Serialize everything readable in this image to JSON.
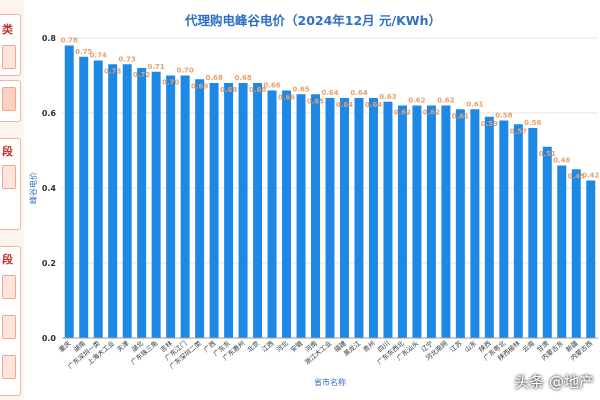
{
  "side_panel": {
    "labels": [
      "类",
      "段",
      "段"
    ]
  },
  "watermark": "头条 @地产",
  "chart_data": {
    "type": "bar",
    "title": "代理购电峰谷电价（2024年12月 元/KWh）",
    "xlabel": "省市名称",
    "ylabel": "峰谷电价",
    "ylim": [
      0,
      0.8
    ],
    "yticks": [
      "0.0",
      "0.2",
      "0.4",
      "0.6",
      "0.8"
    ],
    "bar_color": "#1e88e5",
    "label_color": "#e8a06a",
    "grid": true,
    "categories": [
      "重庆",
      "湖南",
      "广东深圳一类",
      "上海大工业",
      "天津",
      "湖北",
      "广东珠三角",
      "吉林",
      "广东江门",
      "广东深圳二类",
      "广西",
      "广东东",
      "广东惠州",
      "北京",
      "江西",
      "河北",
      "安徽",
      "河南",
      "浙江大工业",
      "福建",
      "黑龙江",
      "贵州",
      "四川",
      "广东东西北",
      "广东汕头",
      "辽宁",
      "河北南网",
      "江苏",
      "山东",
      "陕西",
      "广东粤北",
      "陕西榆林",
      "云南",
      "甘肃",
      "内蒙古东",
      "新疆",
      "内蒙古西"
    ],
    "values": [
      0.78,
      0.75,
      0.74,
      0.73,
      0.73,
      0.72,
      0.71,
      0.7,
      0.7,
      0.69,
      0.68,
      0.68,
      0.68,
      0.68,
      0.66,
      0.66,
      0.65,
      0.65,
      0.64,
      0.64,
      0.64,
      0.64,
      0.63,
      0.62,
      0.62,
      0.62,
      0.62,
      0.61,
      0.61,
      0.59,
      0.58,
      0.57,
      0.56,
      0.51,
      0.46,
      0.45,
      0.42
    ],
    "labels": [
      "0.78",
      "0.75",
      "0.74",
      "0.73",
      "0.73",
      "0.72",
      "0.71",
      "0.70",
      "0.70",
      "0.69",
      "0.68",
      "0.68",
      "0.68",
      "0.68",
      "0.66",
      "0.66",
      "0.65",
      "0.65",
      "0.64",
      "0.64",
      "0.64",
      "0.64",
      "0.63",
      "0.62",
      "0.62",
      "0.62",
      "0.62",
      "0.61",
      "0.61",
      "0.59",
      "0.58",
      "0.57",
      "0.56",
      "0.51",
      "0.46",
      "0.45",
      "0.42"
    ]
  }
}
